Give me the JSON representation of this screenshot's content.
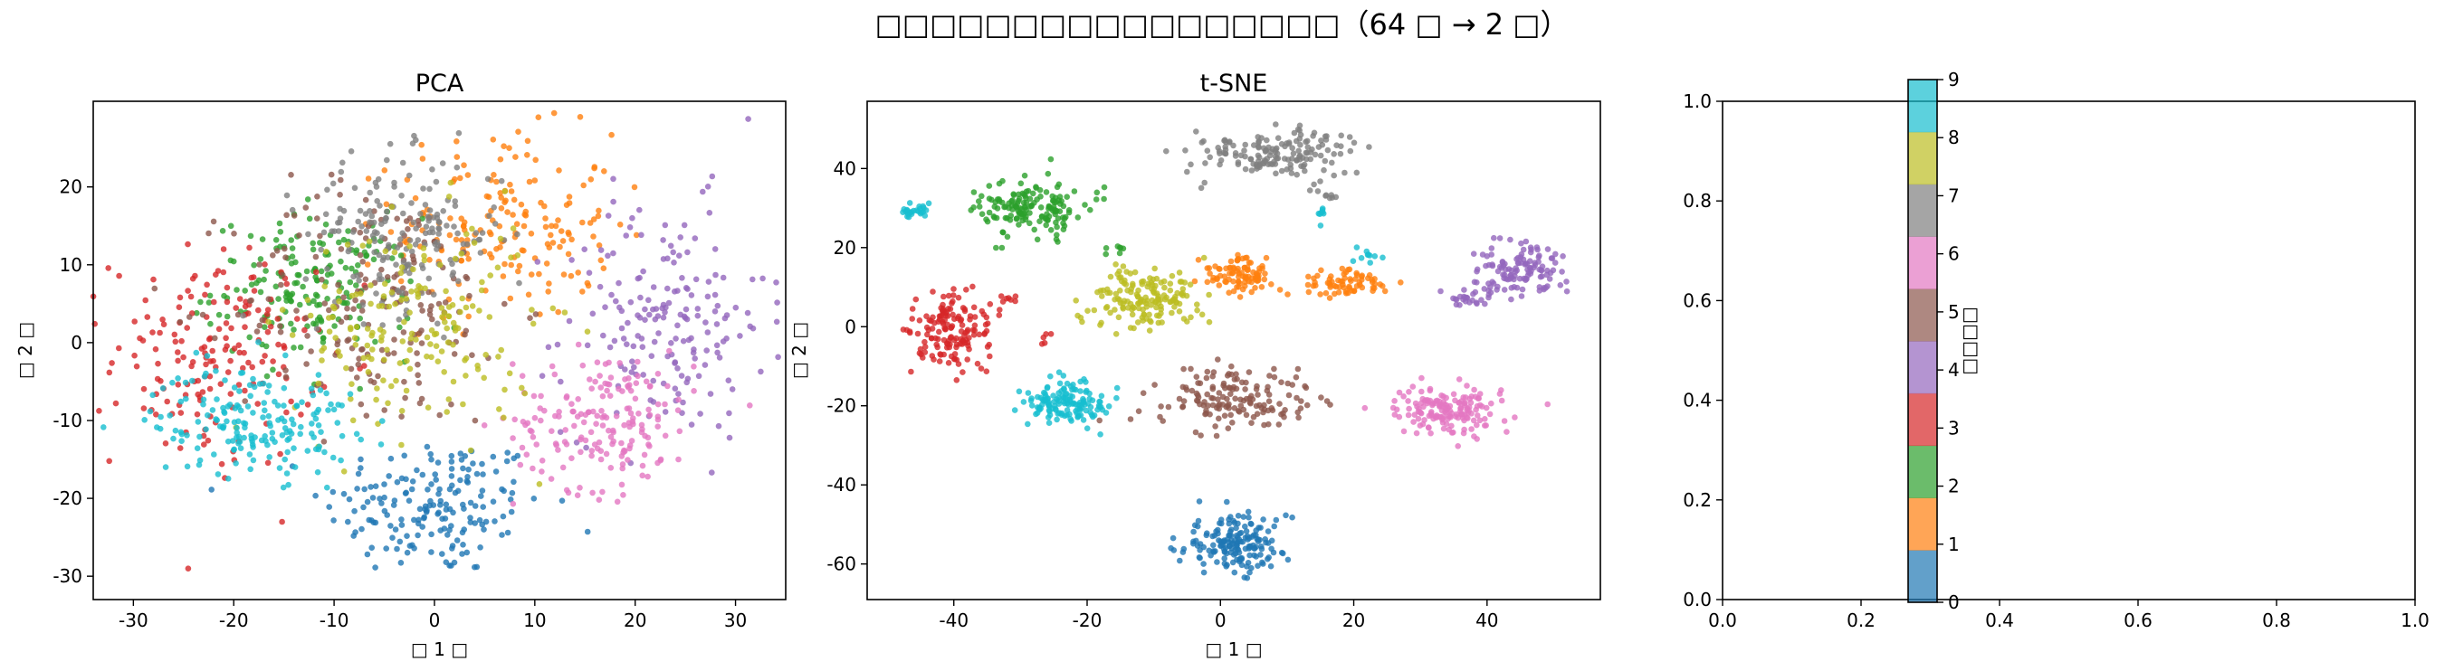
{
  "figure": {
    "suptitle": "□□□□□□□□□□□□□□□□□（64 □ → 2 □）"
  },
  "colors": [
    "#1f77b4",
    "#ff7f0e",
    "#2ca02c",
    "#d62728",
    "#9467bd",
    "#8c564b",
    "#e377c2",
    "#7f7f7f",
    "#bcbd22",
    "#17becf"
  ],
  "chart_data": [
    {
      "type": "scatter",
      "title": "PCA",
      "xlabel": "□ 1 □",
      "ylabel": "□ 2 □",
      "xlim": [
        -34,
        35
      ],
      "ylim": [
        -33,
        31
      ],
      "xticks": [
        -30,
        -20,
        -10,
        0,
        10,
        20,
        30
      ],
      "yticks": [
        -30,
        -20,
        -10,
        0,
        10,
        20
      ],
      "grid": false,
      "clusters": [
        {
          "class": 0,
          "center": [
            0,
            -21
          ],
          "spread": [
            5.5,
            4.5
          ],
          "count": 180
        },
        {
          "class": 1,
          "center": [
            7,
            15
          ],
          "spread": [
            5.5,
            6
          ],
          "count": 180
        },
        {
          "class": 2,
          "center": [
            -12,
            7
          ],
          "spread": [
            5,
            4.5
          ],
          "count": 180
        },
        {
          "class": 3,
          "center": [
            -22,
            -2
          ],
          "spread": [
            5,
            7
          ],
          "count": 180
        },
        {
          "class": 4,
          "center": [
            23,
            3
          ],
          "spread": [
            5,
            7.5
          ],
          "count": 180
        },
        {
          "class": 5,
          "center": [
            -6,
            5
          ],
          "spread": [
            7,
            8
          ],
          "count": 180
        },
        {
          "class": 6,
          "center": [
            17,
            -10
          ],
          "spread": [
            4.5,
            4.5
          ],
          "count": 180
        },
        {
          "class": 7,
          "center": [
            -3,
            14
          ],
          "spread": [
            5,
            5
          ],
          "count": 180
        },
        {
          "class": 8,
          "center": [
            -2,
            2
          ],
          "spread": [
            6,
            7
          ],
          "count": 180
        },
        {
          "class": 9,
          "center": [
            -18,
            -10
          ],
          "spread": [
            5,
            3.5
          ],
          "count": 180
        }
      ]
    },
    {
      "type": "scatter",
      "title": "t-SNE",
      "xlabel": "□ 1 □",
      "ylabel": "□ 2 □",
      "xlim": [
        -53,
        57
      ],
      "ylim": [
        -69,
        57
      ],
      "xticks": [
        -40,
        -20,
        0,
        20,
        40
      ],
      "yticks": [
        -60,
        -40,
        -20,
        0,
        20,
        40
      ],
      "grid": false,
      "clusters": [
        {
          "class": 0,
          "center": [
            2,
            -55
          ],
          "spread": [
            4,
            3.5
          ],
          "count": 170
        },
        {
          "class": 1,
          "center": [
            3,
            13
          ],
          "spread": [
            3,
            2.2
          ],
          "count": 90
        },
        {
          "class": 1,
          "center": [
            18,
            11
          ],
          "spread": [
            3.5,
            1.8
          ],
          "count": 70
        },
        {
          "class": 2,
          "center": [
            -28,
            30
          ],
          "spread": [
            4,
            3.5
          ],
          "count": 160
        },
        {
          "class": 2,
          "center": [
            -15,
            20
          ],
          "spread": [
            0.8,
            0.5
          ],
          "count": 6
        },
        {
          "class": 3,
          "center": [
            -40,
            -1
          ],
          "spread": [
            3,
            5
          ],
          "count": 150
        },
        {
          "class": 3,
          "center": [
            -32,
            7
          ],
          "spread": [
            1,
            0.6
          ],
          "count": 8
        },
        {
          "class": 3,
          "center": [
            -26,
            -3
          ],
          "spread": [
            0.8,
            0.8
          ],
          "count": 5
        },
        {
          "class": 4,
          "center": [
            45,
            14
          ],
          "spread": [
            3.5,
            3.5
          ],
          "count": 120
        },
        {
          "class": 4,
          "center": [
            37,
            7
          ],
          "spread": [
            2,
            1
          ],
          "count": 25
        },
        {
          "class": 5,
          "center": [
            2,
            -18
          ],
          "spread": [
            6,
            4
          ],
          "count": 150
        },
        {
          "class": 6,
          "center": [
            34,
            -21
          ],
          "spread": [
            4,
            3
          ],
          "count": 160
        },
        {
          "class": 7,
          "center": [
            8,
            44
          ],
          "spread": [
            5.5,
            3
          ],
          "count": 160
        },
        {
          "class": 7,
          "center": [
            16,
            33
          ],
          "spread": [
            0.6,
            0.4
          ],
          "count": 6
        },
        {
          "class": 8,
          "center": [
            -12,
            7
          ],
          "spread": [
            4.5,
            4
          ],
          "count": 160
        },
        {
          "class": 9,
          "center": [
            -23,
            -19
          ],
          "spread": [
            3,
            3
          ],
          "count": 140
        },
        {
          "class": 9,
          "center": [
            -46,
            29
          ],
          "spread": [
            1,
            1.2
          ],
          "count": 25
        },
        {
          "class": 9,
          "center": [
            22,
            18
          ],
          "spread": [
            0.8,
            1
          ],
          "count": 10
        },
        {
          "class": 9,
          "center": [
            15,
            29
          ],
          "spread": [
            0.6,
            1
          ],
          "count": 8
        }
      ]
    },
    {
      "type": "colorbar",
      "label": "□□□□",
      "ticks": [
        "0",
        "1",
        "2",
        "3",
        "4",
        "5",
        "6",
        "7",
        "8",
        "9"
      ],
      "range": [
        0,
        9
      ],
      "empty_axes": {
        "xlim": [
          0,
          1
        ],
        "ylim": [
          0,
          1
        ],
        "xticks": [
          "0.0",
          "0.2",
          "0.4",
          "0.6",
          "0.8",
          "1.0"
        ],
        "yticks": [
          "0.0",
          "0.2",
          "0.4",
          "0.6",
          "0.8",
          "1.0"
        ]
      }
    }
  ]
}
